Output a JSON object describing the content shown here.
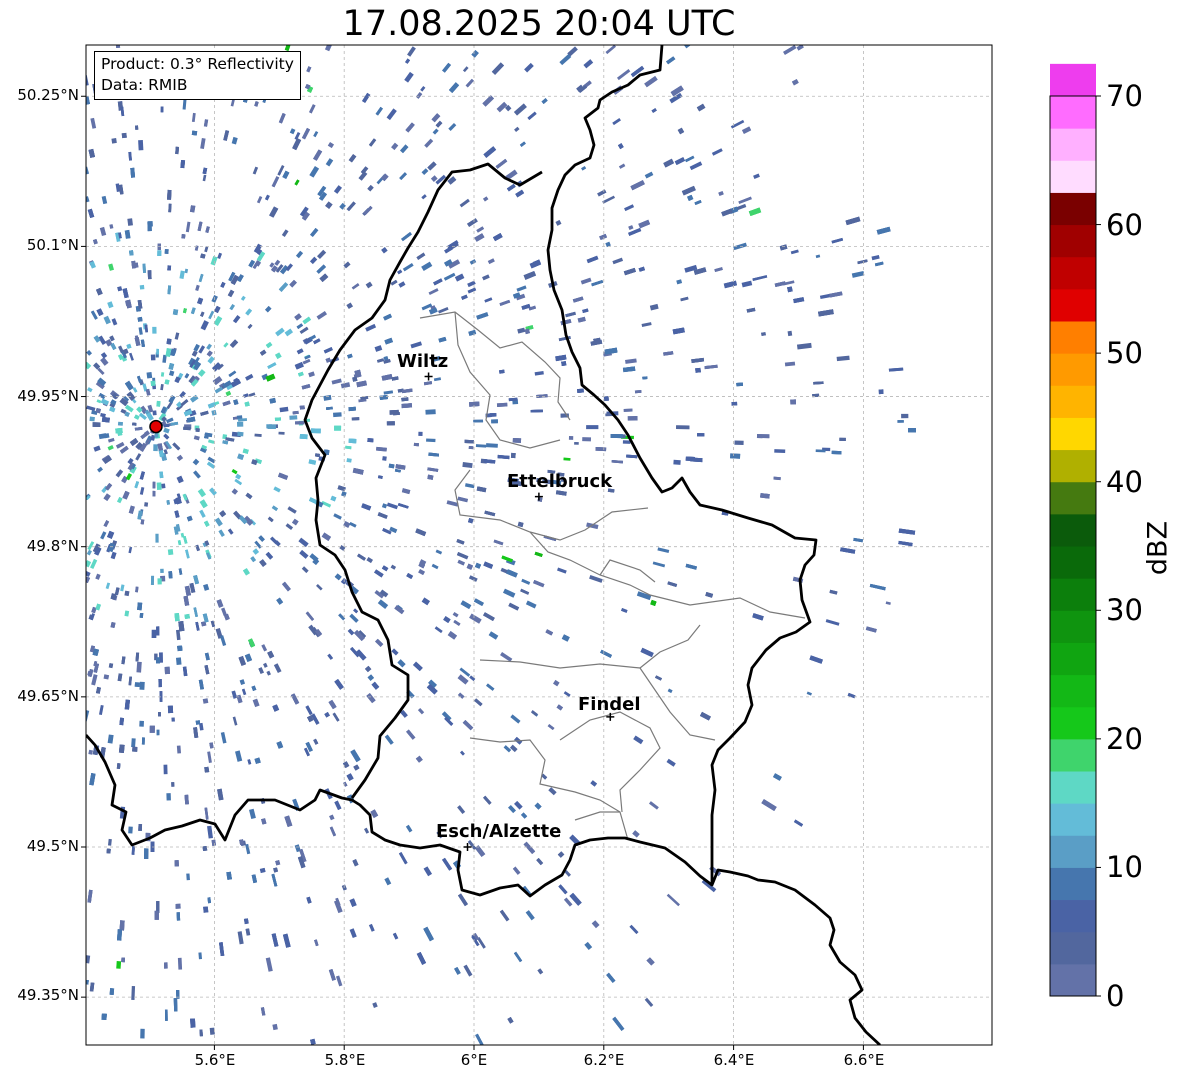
{
  "title": "17.08.2025 20:04 UTC",
  "info_box": {
    "product": "Product: 0.3° Reflectivity",
    "data_source": "Data: RMIB"
  },
  "lat_ticks": [
    "50.25°N",
    "50.1°N",
    "49.95°N",
    "49.8°N",
    "49.65°N",
    "49.5°N",
    "49.35°N"
  ],
  "lon_ticks": [
    "5.6°E",
    "5.8°E",
    "6°E",
    "6.2°E",
    "6.4°E",
    "6.6°E"
  ],
  "cities": [
    {
      "name": "Wiltz",
      "lon": 5.93,
      "lat": 49.97
    },
    {
      "name": "Ettelbruck",
      "lon": 6.1,
      "lat": 49.85
    },
    {
      "name": "Findel",
      "lon": 6.21,
      "lat": 49.63
    },
    {
      "name": "Esch/Alzette",
      "lon": 5.99,
      "lat": 49.5
    }
  ],
  "radar_site": {
    "lon": 5.51,
    "lat": 49.92
  },
  "colorbar": {
    "label": "dBZ",
    "ticks": [
      "0",
      "10",
      "20",
      "30",
      "40",
      "50",
      "60",
      "70"
    ],
    "min": 0,
    "max": 70,
    "step": 2.5,
    "colors": [
      "#6372a8",
      "#52679e",
      "#4a63a5",
      "#4676ae",
      "#5a9ec6",
      "#63bcd8",
      "#5ed8c5",
      "#3fd46c",
      "#15c81a",
      "#13b816",
      "#10a511",
      "#0f940f",
      "#0c7f0c",
      "#0a6a0a",
      "#0b5b0b",
      "#457a10",
      "#b0b000",
      "#ffd700",
      "#ffb400",
      "#ff9a00",
      "#ff7f00",
      "#e00000",
      "#c00000",
      "#a00000",
      "#7a0000",
      "#ffdcff",
      "#ffb0ff",
      "#ff6cff",
      "#ee3dee"
    ]
  }
}
